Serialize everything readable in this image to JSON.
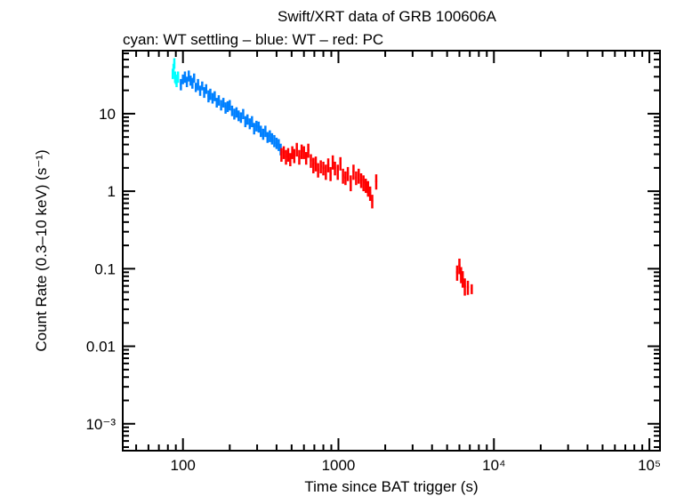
{
  "chart_data": {
    "type": "scatter",
    "title": "Swift/XRT data of GRB 100606A",
    "subtitle": "cyan: WT settling – blue: WT – red: PC",
    "xlabel": "Time since BAT trigger (s)",
    "ylabel": "Count Rate (0.3–10 keV) (s⁻¹)",
    "xscale": "log",
    "yscale": "log",
    "xlim": [
      41,
      117000
    ],
    "ylim": [
      0.00045,
      65
    ],
    "grid": false,
    "xticks": [
      {
        "value": 100,
        "label": "100"
      },
      {
        "value": 1000,
        "label": "1000"
      },
      {
        "value": 10000,
        "label": "10⁴"
      },
      {
        "value": 100000,
        "label": "10⁵"
      }
    ],
    "yticks": [
      {
        "value": 10,
        "label": "10"
      },
      {
        "value": 1,
        "label": "1"
      },
      {
        "value": 0.1,
        "label": "0.1"
      },
      {
        "value": 0.01,
        "label": "0.01"
      },
      {
        "value": 0.001,
        "label": "10⁻³"
      }
    ],
    "series": [
      {
        "mode": "WT settling",
        "color": "#00ffff",
        "points": [
          [
            86,
            33,
            5
          ],
          [
            87,
            38,
            6
          ],
          [
            88,
            45,
            7
          ],
          [
            89,
            30,
            5
          ],
          [
            90,
            28,
            4
          ],
          [
            91,
            26,
            4
          ],
          [
            93,
            30,
            5
          ]
        ]
      },
      {
        "mode": "WT",
        "color": "#0080ff",
        "points": [
          [
            97,
            24,
            4
          ],
          [
            100,
            28,
            4
          ],
          [
            103,
            30,
            5
          ],
          [
            106,
            26,
            4
          ],
          [
            109,
            31,
            5
          ],
          [
            112,
            27,
            4
          ],
          [
            115,
            25,
            4
          ],
          [
            118,
            29,
            4
          ],
          [
            121,
            22,
            3
          ],
          [
            125,
            24,
            4
          ],
          [
            129,
            20,
            3
          ],
          [
            133,
            23,
            3
          ],
          [
            137,
            19,
            3
          ],
          [
            141,
            21,
            3
          ],
          [
            146,
            17,
            3
          ],
          [
            150,
            18,
            3
          ],
          [
            155,
            16,
            2.5
          ],
          [
            160,
            17,
            2.5
          ],
          [
            165,
            14,
            2
          ],
          [
            170,
            15,
            2.3
          ],
          [
            176,
            13,
            2
          ],
          [
            182,
            14,
            2
          ],
          [
            188,
            12,
            2
          ],
          [
            194,
            12.5,
            2
          ],
          [
            200,
            13,
            2
          ],
          [
            207,
            11,
            1.7
          ],
          [
            214,
            10,
            1.6
          ],
          [
            221,
            10.5,
            1.6
          ],
          [
            228,
            9.5,
            1.5
          ],
          [
            236,
            9,
            1.4
          ],
          [
            244,
            10,
            1.5
          ],
          [
            252,
            8,
            1.3
          ],
          [
            260,
            8.5,
            1.3
          ],
          [
            269,
            7.5,
            1.2
          ],
          [
            278,
            8,
            1.3
          ],
          [
            287,
            6.5,
            1.1
          ],
          [
            297,
            7,
            1.1
          ],
          [
            307,
            6.8,
            1.1
          ],
          [
            317,
            6,
            1
          ],
          [
            328,
            5.5,
            0.9
          ],
          [
            339,
            6,
            1
          ],
          [
            350,
            5,
            0.8
          ],
          [
            362,
            5.2,
            0.9
          ],
          [
            374,
            4.8,
            0.8
          ],
          [
            387,
            4.5,
            0.8
          ],
          [
            400,
            4.2,
            0.7
          ],
          [
            413,
            4,
            0.7
          ],
          [
            425,
            3.5,
            0.6
          ]
        ]
      },
      {
        "mode": "PC",
        "color": "#ff0000",
        "points": [
          [
            430,
            3,
            0.6
          ],
          [
            445,
            3.2,
            0.6
          ],
          [
            460,
            2.8,
            0.6
          ],
          [
            475,
            3,
            0.6
          ],
          [
            490,
            2.6,
            0.5
          ],
          [
            505,
            3.2,
            0.6
          ],
          [
            520,
            2.9,
            0.6
          ],
          [
            540,
            3.5,
            0.7
          ],
          [
            560,
            2.8,
            0.6
          ],
          [
            580,
            3.3,
            0.7
          ],
          [
            600,
            3.2,
            0.6
          ],
          [
            620,
            2.7,
            0.5
          ],
          [
            640,
            3.4,
            0.7
          ],
          [
            665,
            2.5,
            0.5
          ],
          [
            690,
            2.2,
            0.5
          ],
          [
            715,
            2.3,
            0.5
          ],
          [
            740,
            1.9,
            0.4
          ],
          [
            770,
            2.1,
            0.4
          ],
          [
            800,
            2.0,
            0.4
          ],
          [
            830,
            1.8,
            0.4
          ],
          [
            860,
            2.2,
            0.45
          ],
          [
            890,
            1.7,
            0.35
          ],
          [
            920,
            2.4,
            0.5
          ],
          [
            950,
            2.0,
            0.4
          ],
          [
            990,
            1.8,
            0.4
          ],
          [
            1030,
            2.3,
            0.45
          ],
          [
            1070,
            1.6,
            0.35
          ],
          [
            1110,
            1.5,
            0.3
          ],
          [
            1150,
            1.7,
            0.35
          ],
          [
            1200,
            1.3,
            0.3
          ],
          [
            1250,
            1.8,
            0.4
          ],
          [
            1300,
            1.5,
            0.3
          ],
          [
            1350,
            1.6,
            0.35
          ],
          [
            1400,
            1.4,
            0.3
          ],
          [
            1450,
            1.3,
            0.3
          ],
          [
            1500,
            1.2,
            0.25
          ],
          [
            1550,
            1.1,
            0.25
          ],
          [
            1600,
            0.95,
            0.2
          ],
          [
            1650,
            0.75,
            0.15
          ],
          [
            1750,
            1.35,
            0.3
          ],
          [
            5800,
            0.09,
            0.02
          ],
          [
            6000,
            0.11,
            0.025
          ],
          [
            6150,
            0.085,
            0.02
          ],
          [
            6300,
            0.075,
            0.018
          ],
          [
            6500,
            0.06,
            0.015
          ],
          [
            6800,
            0.058,
            0.012
          ],
          [
            7200,
            0.055,
            0.008
          ]
        ]
      }
    ]
  }
}
